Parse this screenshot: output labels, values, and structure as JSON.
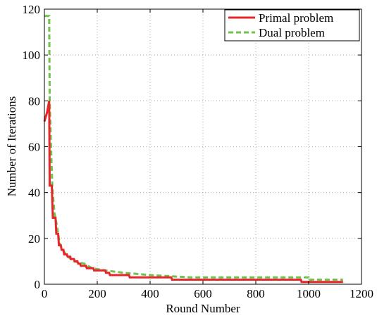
{
  "chart_data": {
    "type": "line",
    "title": "",
    "xlabel": "Round Number",
    "ylabel": "Number of Iterations",
    "xlim": [
      0,
      1200
    ],
    "ylim": [
      0,
      120
    ],
    "xticks": [
      0,
      200,
      400,
      600,
      800,
      1000,
      1200
    ],
    "yticks": [
      0,
      20,
      40,
      60,
      80,
      100,
      120
    ],
    "xtick_labels": [
      "0",
      "200",
      "400",
      "600",
      "800",
      "1000",
      "1200"
    ],
    "ytick_labels": [
      "0",
      "20",
      "40",
      "60",
      "80",
      "100",
      "120"
    ],
    "grid": true,
    "legend_position": "top-right",
    "series": [
      {
        "name": "Primal problem",
        "color": "#e8262a",
        "style": "solid",
        "step": true,
        "points": [
          [
            0,
            71
          ],
          [
            10,
            75
          ],
          [
            18,
            80
          ],
          [
            20,
            43
          ],
          [
            28,
            43
          ],
          [
            32,
            29
          ],
          [
            42,
            29
          ],
          [
            45,
            22
          ],
          [
            52,
            22
          ],
          [
            55,
            17
          ],
          [
            62,
            17
          ],
          [
            65,
            15
          ],
          [
            72,
            15
          ],
          [
            75,
            13
          ],
          [
            85,
            13
          ],
          [
            88,
            12
          ],
          [
            98,
            12
          ],
          [
            100,
            11
          ],
          [
            112,
            11
          ],
          [
            115,
            10
          ],
          [
            125,
            10
          ],
          [
            128,
            9
          ],
          [
            135,
            9
          ],
          [
            138,
            8
          ],
          [
            158,
            8
          ],
          [
            160,
            7
          ],
          [
            185,
            7
          ],
          [
            188,
            6
          ],
          [
            230,
            6
          ],
          [
            233,
            5
          ],
          [
            245,
            5
          ],
          [
            248,
            4
          ],
          [
            320,
            4
          ],
          [
            323,
            3
          ],
          [
            480,
            3
          ],
          [
            483,
            2
          ],
          [
            970,
            2
          ],
          [
            973,
            1
          ],
          [
            1130,
            1
          ]
        ]
      },
      {
        "name": "Dual problem",
        "color": "#6cc24a",
        "style": "dashed",
        "step": true,
        "points": [
          [
            0,
            117
          ],
          [
            18,
            117
          ],
          [
            20,
            80
          ],
          [
            25,
            60
          ],
          [
            30,
            42
          ],
          [
            38,
            31
          ],
          [
            45,
            27
          ],
          [
            52,
            22
          ],
          [
            58,
            18
          ],
          [
            65,
            16
          ],
          [
            75,
            14
          ],
          [
            90,
            12
          ],
          [
            110,
            10
          ],
          [
            150,
            9
          ],
          [
            180,
            7
          ],
          [
            230,
            6
          ],
          [
            300,
            5
          ],
          [
            400,
            4
          ],
          [
            550,
            3
          ],
          [
            1000,
            3
          ],
          [
            1000,
            2
          ],
          [
            1130,
            2
          ]
        ]
      }
    ]
  }
}
